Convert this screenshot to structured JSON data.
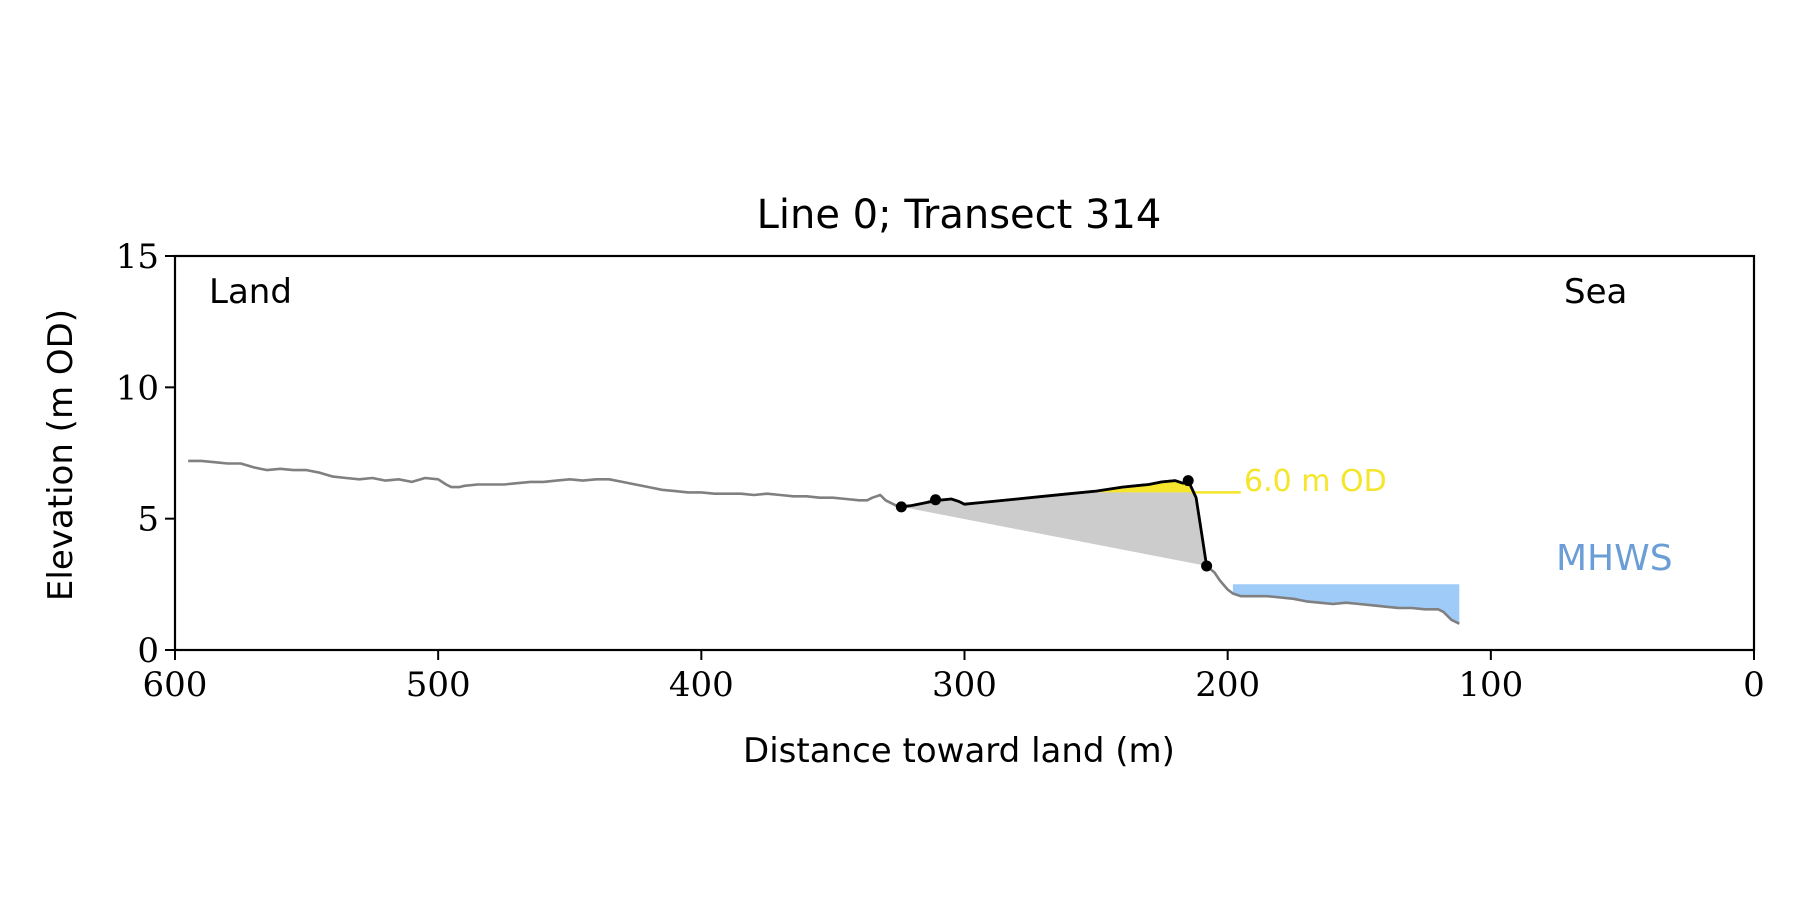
{
  "chart_data": {
    "type": "line",
    "title": "Line 0; Transect 314",
    "xlabel": "Distance toward land (m)",
    "ylabel": "Elevation (m OD)",
    "xlim": [
      600,
      0
    ],
    "ylim": [
      0,
      15
    ],
    "xticks": [
      600,
      500,
      400,
      300,
      200,
      100,
      0
    ],
    "yticks": [
      0,
      5,
      10,
      15
    ],
    "grid": false,
    "annotations": {
      "land_label": "Land",
      "sea_label": "Sea",
      "threshold_label": "6.0 m OD",
      "mhws_label": "MHWS"
    },
    "colors": {
      "profile": "#808080",
      "dune": "#000000",
      "fill_above_threshold": "#f5e52c",
      "fill_volume": "#cccccc",
      "threshold_line": "#f5e52c",
      "mhws_fill": "#9ecbf8",
      "mhws_text": "#6b9ed6"
    },
    "threshold_elevation": 6.0,
    "mhws": {
      "elevation": 2.5,
      "x_range": [
        198,
        112
      ]
    },
    "profile": {
      "x": [
        595,
        590,
        585,
        580,
        575,
        570,
        565,
        560,
        555,
        550,
        545,
        540,
        535,
        530,
        525,
        520,
        515,
        510,
        505,
        500,
        497,
        495,
        492,
        490,
        485,
        480,
        475,
        470,
        465,
        460,
        455,
        450,
        445,
        440,
        435,
        430,
        425,
        420,
        415,
        410,
        405,
        400,
        395,
        390,
        385,
        380,
        375,
        370,
        365,
        360,
        355,
        350,
        345,
        340,
        337,
        335,
        332,
        330,
        327,
        325,
        323,
        320,
        315,
        312,
        310,
        305,
        302,
        300,
        295,
        290,
        280,
        270,
        260,
        250,
        240,
        230,
        225,
        220,
        217,
        215,
        212,
        210,
        208,
        205,
        203,
        200,
        198,
        195,
        190,
        185,
        180,
        175,
        170,
        165,
        160,
        155,
        150,
        145,
        140,
        135,
        130,
        125,
        120,
        118,
        115,
        112
      ],
      "y": [
        7.2,
        7.2,
        7.15,
        7.1,
        7.1,
        6.95,
        6.85,
        6.9,
        6.85,
        6.85,
        6.75,
        6.6,
        6.55,
        6.5,
        6.55,
        6.45,
        6.5,
        6.4,
        6.55,
        6.5,
        6.3,
        6.2,
        6.2,
        6.25,
        6.3,
        6.3,
        6.3,
        6.35,
        6.4,
        6.4,
        6.45,
        6.5,
        6.45,
        6.5,
        6.5,
        6.4,
        6.3,
        6.2,
        6.1,
        6.05,
        6.0,
        6.0,
        5.95,
        5.95,
        5.95,
        5.9,
        5.95,
        5.9,
        5.85,
        5.85,
        5.8,
        5.8,
        5.75,
        5.7,
        5.7,
        5.8,
        5.9,
        5.7,
        5.55,
        5.45,
        5.45,
        5.5,
        5.6,
        5.7,
        5.7,
        5.75,
        5.65,
        5.55,
        5.6,
        5.65,
        5.75,
        5.85,
        5.95,
        6.05,
        6.2,
        6.3,
        6.4,
        6.45,
        6.35,
        6.45,
        5.8,
        4.5,
        3.2,
        2.95,
        2.65,
        2.3,
        2.15,
        2.05,
        2.05,
        2.05,
        2.0,
        1.95,
        1.85,
        1.8,
        1.75,
        1.8,
        1.75,
        1.7,
        1.65,
        1.6,
        1.6,
        1.55,
        1.55,
        1.45,
        1.15,
        1.0
      ]
    },
    "dune_profile": {
      "x": [
        324,
        320,
        315,
        310,
        305,
        302,
        300,
        295,
        290,
        280,
        270,
        260,
        250,
        240,
        230,
        225,
        220,
        217,
        215,
        212,
        210,
        208
      ],
      "y": [
        5.45,
        5.5,
        5.6,
        5.7,
        5.75,
        5.65,
        5.55,
        5.6,
        5.65,
        5.75,
        5.85,
        5.95,
        6.05,
        6.2,
        6.3,
        6.4,
        6.45,
        6.35,
        6.45,
        5.8,
        4.5,
        3.2
      ]
    },
    "dune_points": [
      {
        "x": 324,
        "y": 5.45
      },
      {
        "x": 311,
        "y": 5.72
      },
      {
        "x": 215,
        "y": 6.45
      },
      {
        "x": 208,
        "y": 3.2
      }
    ],
    "volume_polygon": {
      "x": [
        324,
        320,
        315,
        310,
        305,
        302,
        300,
        295,
        290,
        280,
        270,
        260,
        250,
        240,
        230,
        225,
        220,
        217,
        215,
        212,
        210,
        208
      ],
      "y": [
        5.45,
        5.5,
        5.6,
        5.7,
        5.75,
        5.65,
        5.55,
        5.6,
        5.65,
        5.75,
        5.85,
        5.95,
        6.05,
        6.2,
        6.3,
        6.4,
        6.45,
        6.35,
        6.45,
        5.8,
        4.5,
        3.2
      ]
    },
    "threshold_line_x": [
      214,
      195
    ]
  }
}
